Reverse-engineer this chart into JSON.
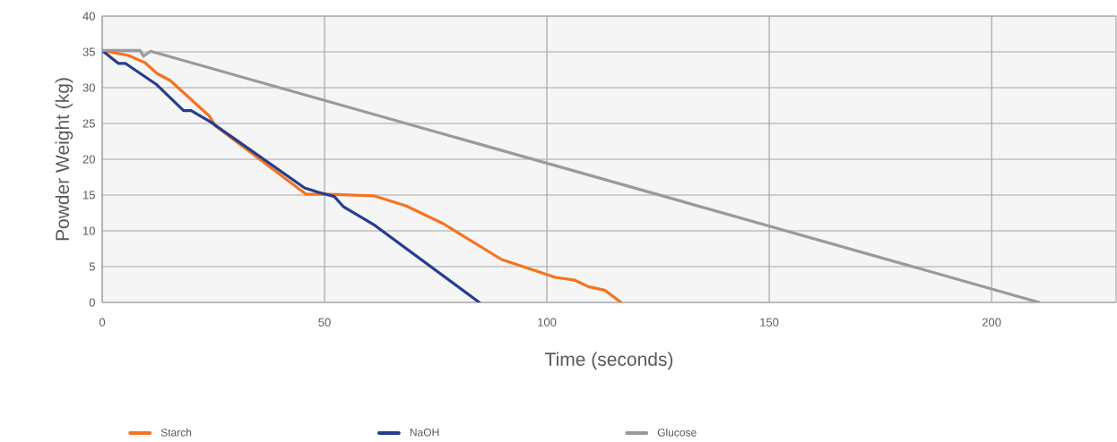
{
  "chart_data": {
    "type": "line",
    "xlabel": "Time (seconds)",
    "ylabel": "Powder Weight (kg)",
    "xlim": [
      0,
      228
    ],
    "ylim": [
      0,
      40
    ],
    "xticks": [
      0,
      50,
      100,
      150,
      200
    ],
    "yticks": [
      0,
      5,
      10,
      15,
      20,
      25,
      30,
      35,
      40
    ],
    "grid": true,
    "legend": "bottom",
    "series": [
      {
        "name": "Starch",
        "color": "#f47321",
        "x": [
          0,
          5.9,
          9.6,
          12.3,
          15.3,
          24,
          25.4,
          45.9,
          51,
          61,
          68.3,
          76.7,
          89.8,
          101.9,
          106.3,
          109.3,
          113,
          116.7
        ],
        "values": [
          35.2,
          34.5,
          33.5,
          32,
          31,
          26.1,
          24.7,
          15.1,
          15.1,
          14.9,
          13.5,
          11,
          6,
          3.5,
          3.1,
          2.2,
          1.7,
          0
        ]
      },
      {
        "name": "NaOH",
        "color": "#263d8f",
        "x": [
          0,
          3.6,
          5.2,
          12.3,
          18.3,
          20,
          24.4,
          45.5,
          48.5,
          52.2,
          54.2,
          61,
          84.8
        ],
        "values": [
          35.2,
          33.4,
          33.4,
          30.4,
          26.8,
          26.8,
          25.2,
          16,
          15.4,
          14.8,
          13.4,
          10.9,
          0
        ]
      },
      {
        "name": "Glucose",
        "color": "#9a9a9e",
        "x": [
          0,
          8.5,
          9.3,
          10.9,
          210.7
        ],
        "values": [
          35.2,
          35.2,
          34.4,
          35.1,
          0
        ]
      }
    ]
  }
}
